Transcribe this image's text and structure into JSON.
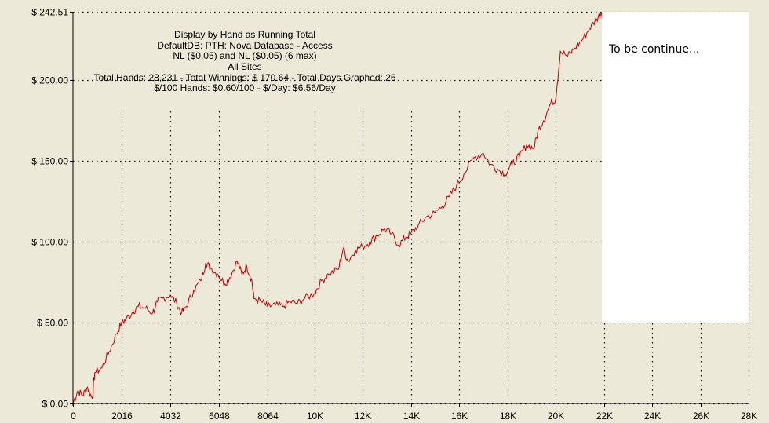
{
  "info": {
    "lines": [
      "Display by Hand as Running Total",
      "DefaultDB: PTH: Nova Database - Access",
      "NL ($0.05) and NL ($0.05) (6 max)",
      "All Sites",
      "Total Hands: 28,231 - Total Winnings: $ 170.64 - Total Days Graphed: 26",
      "$/100 Hands: $0.60/100 - $/Day: $6.56/Day"
    ]
  },
  "note": {
    "text": "To be continue..."
  },
  "chart_data": {
    "type": "line",
    "title": "",
    "xlabel": "",
    "ylabel": "",
    "xlim": [
      0,
      28000
    ],
    "ylim": [
      0,
      242.51
    ],
    "x_ticks": [
      0,
      2016,
      4032,
      6048,
      8064,
      10000,
      12000,
      14000,
      16000,
      18000,
      20000,
      22000,
      24000,
      26000,
      28000
    ],
    "x_tick_labels": [
      "0",
      "2016",
      "4032",
      "6048",
      "8064",
      "10K",
      "12K",
      "14K",
      "16K",
      "18K",
      "20K",
      "22K",
      "24K",
      "26K",
      "28K"
    ],
    "y_ticks": [
      0,
      50,
      100,
      150,
      200,
      242.51
    ],
    "y_tick_labels": [
      "$ 0.00",
      "$ 50.00",
      "$ 100.00",
      "$ 150.00",
      "$ 200.00",
      "$ 242.51"
    ],
    "grid": true,
    "line_color": "#c00000",
    "series": [
      {
        "name": "",
        "x": [
          0,
          200,
          400,
          600,
          800,
          900,
          1200,
          1500,
          1800,
          2016,
          2200,
          2500,
          2700,
          3000,
          3300,
          3500,
          3700,
          4032,
          4300,
          4500,
          4700,
          5000,
          5300,
          5500,
          5700,
          6000,
          6300,
          6500,
          6800,
          7000,
          7200,
          7400,
          7500,
          7800,
          8064,
          8400,
          8700,
          9000,
          9300,
          9600,
          10000,
          10300,
          10600,
          11000,
          11200,
          11400,
          11700,
          12000,
          12300,
          12600,
          12900,
          13200,
          13500,
          13800,
          14000,
          14300,
          14600,
          15000,
          15300,
          15600,
          15900,
          16200,
          16600,
          17000,
          17300,
          17600,
          17900,
          18200,
          18500,
          18800,
          19100,
          19300,
          19500,
          19800,
          20000,
          20200,
          20500,
          20800,
          21100,
          21400,
          21700,
          21900,
          22000
        ],
        "values": [
          0,
          8,
          5,
          10,
          3,
          19,
          22,
          32,
          43,
          50,
          52,
          57,
          60,
          59,
          56,
          63,
          65,
          67,
          62,
          56,
          60,
          70,
          76,
          87,
          84,
          80,
          74,
          78,
          88,
          80,
          85,
          77,
          65,
          63,
          60,
          61,
          60,
          63,
          62,
          65,
          68,
          76,
          80,
          83,
          96,
          88,
          95,
          97,
          100,
          104,
          108,
          105,
          98,
          103,
          105,
          110,
          115,
          118,
          122,
          128,
          135,
          142,
          152,
          155,
          148,
          145,
          142,
          148,
          153,
          160,
          158,
          170,
          175,
          186,
          188,
          218,
          215,
          220,
          225,
          232,
          238,
          242,
          237
        ]
      }
    ]
  }
}
